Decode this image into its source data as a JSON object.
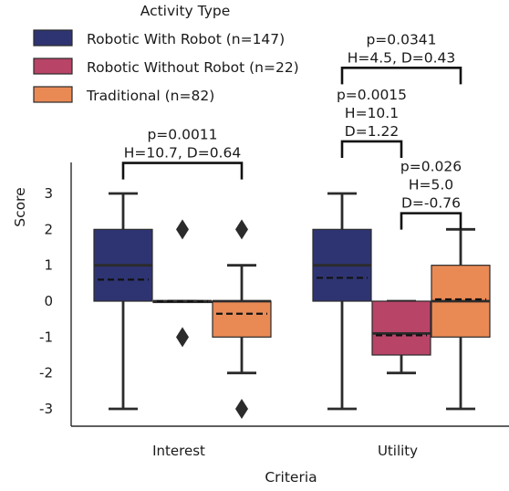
{
  "chart_data": {
    "type": "box",
    "xlabel": "Criteria",
    "ylabel": "Score",
    "categories": [
      "Interest",
      "Utility"
    ],
    "ylim": [
      -3.3,
      3.9
    ],
    "yticks": [
      3,
      2,
      1,
      0,
      -1,
      -2,
      -3
    ],
    "ytick_labels": [
      "3",
      "2",
      "1",
      "0",
      "-1",
      "-2",
      "-3"
    ],
    "legend": {
      "title": "Activity Type",
      "placement": "top-left",
      "entries": [
        {
          "label": "Robotic With Robot (n=147)",
          "color": "#2e3472"
        },
        {
          "label": "Robotic Without Robot (n=22)",
          "color": "#b84468"
        },
        {
          "label": "Traditional (n=82)",
          "color": "#e98a55"
        }
      ]
    },
    "series": [
      {
        "group": 0,
        "boxes": [
          {
            "category": "Interest",
            "whisker_low": -3,
            "q1": 0,
            "median": 1,
            "q3": 2,
            "whisker_high": 3,
            "mean": 0.6,
            "outliers": []
          },
          {
            "category": "Utility",
            "whisker_low": -3,
            "q1": 0,
            "median": 1,
            "q3": 2,
            "whisker_high": 3,
            "mean": 0.65,
            "outliers": []
          }
        ]
      },
      {
        "group": 1,
        "boxes": [
          {
            "category": "Interest",
            "whisker_low": 0,
            "q1": 0,
            "median": 0,
            "q3": 0,
            "whisker_high": 0,
            "mean": 0,
            "outliers": [
              2,
              -1
            ]
          },
          {
            "category": "Utility",
            "whisker_low": -2,
            "q1": -1.5,
            "median": -0.9,
            "q3": 0,
            "whisker_high": 0,
            "mean": -0.95,
            "outliers": []
          }
        ]
      },
      {
        "group": 2,
        "boxes": [
          {
            "category": "Interest",
            "whisker_low": -2,
            "q1": -1,
            "median": 0,
            "q3": 0,
            "whisker_high": 1,
            "mean": -0.35,
            "outliers": [
              2,
              -3
            ]
          },
          {
            "category": "Utility",
            "whisker_low": -3,
            "q1": -1,
            "median": 0,
            "q3": 1,
            "whisker_high": 2,
            "mean": 0.05,
            "outliers": []
          }
        ]
      }
    ],
    "annotations": [
      {
        "category": "Interest",
        "from_group": 0,
        "to_group": 2,
        "level": 3.85,
        "lines": [
          "p=0.0011",
          "H=10.7, D=0.64"
        ]
      },
      {
        "category": "Utility",
        "from_group": 0,
        "to_group": 1,
        "level": 4.45,
        "lines": [
          "p=0.0015",
          "H=10.1",
          "D=1.22"
        ]
      },
      {
        "category": "Utility",
        "from_group": 1,
        "to_group": 2,
        "level": 2.45,
        "lines": [
          "p=0.026",
          "H=5.0",
          "D=-0.76"
        ]
      },
      {
        "category": "Utility",
        "from_group": 0,
        "to_group": 2,
        "level": 6.5,
        "lines": [
          "p=0.0341",
          "H=4.5, D=0.43"
        ]
      }
    ]
  }
}
